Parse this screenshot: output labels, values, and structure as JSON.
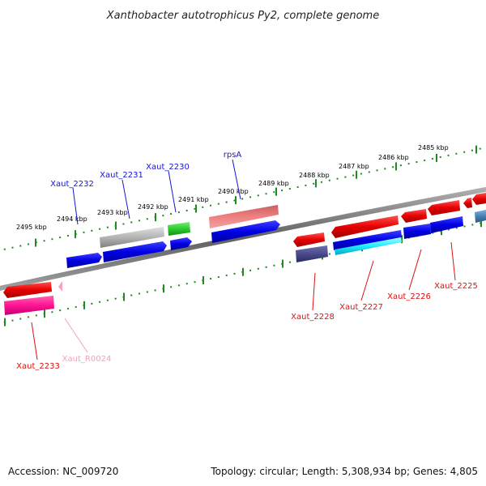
{
  "title": "Xanthobacter autotrophicus Py2, complete genome",
  "footer": {
    "accession": "Accession: NC_009720",
    "summary": "Topology: circular; Length: 5,308,934 bp; Genes: 4,805"
  },
  "ticks": [
    {
      "label": "2495 kbp",
      "kbp": 2495
    },
    {
      "label": "2494 kbp",
      "kbp": 2494
    },
    {
      "label": "2493 kbp",
      "kbp": 2493
    },
    {
      "label": "2492 kbp",
      "kbp": 2492
    },
    {
      "label": "2491 kbp",
      "kbp": 2491
    },
    {
      "label": "2490 kbp",
      "kbp": 2490
    },
    {
      "label": "2489 kbp",
      "kbp": 2489
    },
    {
      "label": "2488 kbp",
      "kbp": 2488
    },
    {
      "label": "2487 kbp",
      "kbp": 2487
    },
    {
      "label": "2486 kbp",
      "kbp": 2486
    },
    {
      "label": "2485 kbp",
      "kbp": 2485
    }
  ],
  "genes": [
    {
      "name": "Xaut_2232",
      "color": "#1515d0"
    },
    {
      "name": "Xaut_2231",
      "color": "#1515d0"
    },
    {
      "name": "Xaut_2230",
      "color": "#1515d0"
    },
    {
      "name": "rpsA",
      "color": "#1515d0"
    },
    {
      "name": "Xaut_2233",
      "color": "#dd1111"
    },
    {
      "name": "Xaut_R0024",
      "color": "#f4a0c0"
    },
    {
      "name": "Xaut_2228",
      "color": "#dd1111"
    },
    {
      "name": "Xaut_2227",
      "color": "#dd1111"
    },
    {
      "name": "Xaut_2226",
      "color": "#dd1111"
    },
    {
      "name": "Xaut_2225",
      "color": "#dd1111"
    }
  ],
  "colors": {
    "backbone": "#808080",
    "tick_mark": "#1f8a1f",
    "forward_cds": "#0000e6",
    "reverse_cds": "#e60000",
    "rrna": "#ff1493",
    "trna": "#ff9ec4",
    "grey_feature": "#b4b4b4",
    "green_feature": "#2ecc2e",
    "salmon_feature": "#ef7f7f",
    "cyan_feature": "#22ffff",
    "slate_feature": "#4a4a8c",
    "steel_feature": "#4682b4"
  }
}
